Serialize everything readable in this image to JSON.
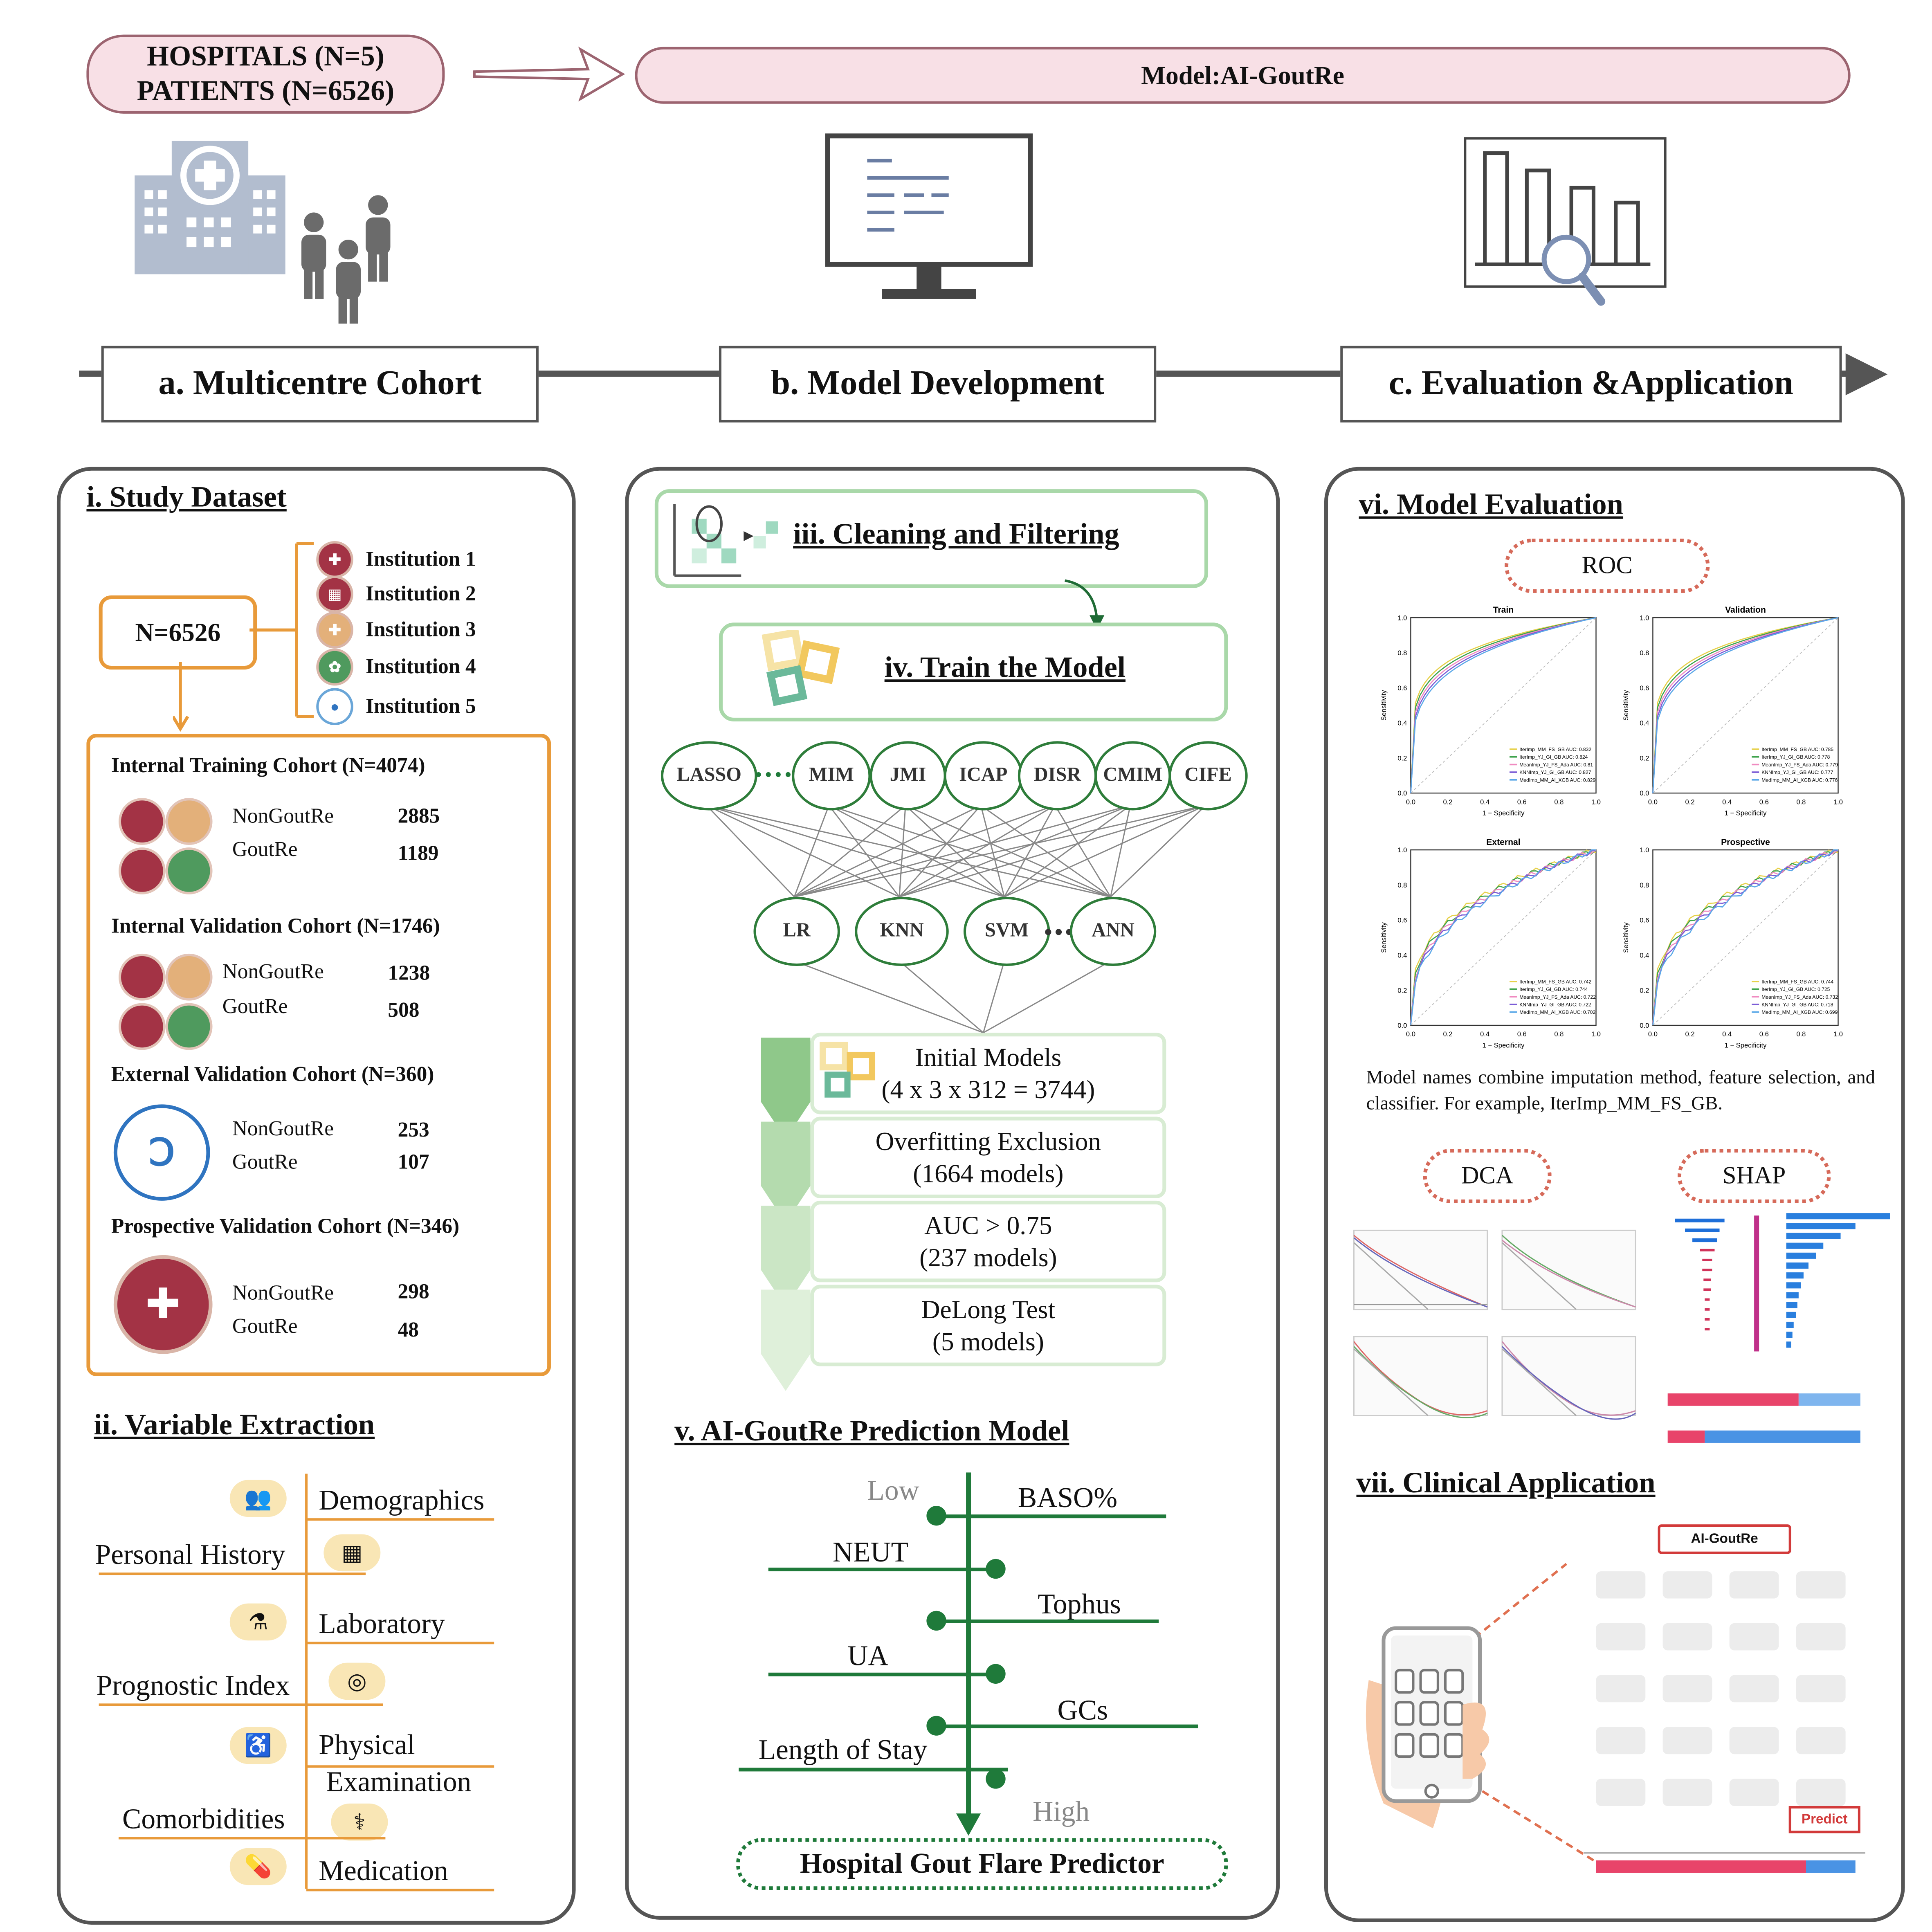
{
  "header": {
    "left_pill_line1": "HOSPITALS (N=5)",
    "left_pill_line2": "PATIENTS (N=6526)",
    "model_pill": "Model:AI-GoutRe"
  },
  "stages": {
    "a": "a. Multicentre Cohort",
    "b": "b. Model Development",
    "c": "c. Evaluation &Application"
  },
  "panel_a": {
    "title_i": "i.   Study Dataset",
    "total": "N=6526",
    "institutions": [
      "Institution 1",
      "Institution 2",
      "Institution 3",
      "Institution 4",
      "Institution 5"
    ],
    "cohorts": [
      {
        "title": "Internal Training Cohort  (N=4074)",
        "neg_label": "NonGoutRe",
        "neg": "2885",
        "pos_label": "GoutRe",
        "pos": "1189"
      },
      {
        "title": "Internal Validation Cohort  (N=1746)",
        "neg_label": "NonGoutRe",
        "neg": "1238",
        "pos_label": "GoutRe",
        "pos": "508"
      },
      {
        "title": "External Validation Cohort  (N=360)",
        "neg_label": "NonGoutRe",
        "neg": "253",
        "pos_label": "GoutRe",
        "pos": "107"
      },
      {
        "title": "Prospective Validation Cohort (N=346)",
        "neg_label": "NonGoutRe",
        "neg": "298",
        "pos_label": "GoutRe",
        "pos": "48"
      }
    ],
    "title_ii": "ii.  Variable Extraction",
    "variables": {
      "demographics": "Demographics",
      "personal_history": "Personal History",
      "laboratory": "Laboratory",
      "prognostic_index": "Prognostic Index",
      "physical_1": "Physical",
      "physical_2": "Examination",
      "comorbidities": "Comorbidities",
      "medication": "Medication"
    }
  },
  "panel_b": {
    "cleaning": "iii. Cleaning and Filtering",
    "train": "iv. Train the Model",
    "feature_selectors": [
      "LASSO",
      "MIM",
      "JMI",
      "ICAP",
      "DISR",
      "CMIM",
      "CIFE"
    ],
    "classifiers": [
      "LR",
      "KNN",
      "SVM",
      "ANN"
    ],
    "steps": [
      {
        "line1": "Initial Models",
        "line2": "(4 x 3 x 312 = 3744)"
      },
      {
        "line1": "Overfitting Exclusion",
        "line2": "(1664 models)"
      },
      {
        "line1": "AUC > 0.75",
        "line2": "(237 models)"
      },
      {
        "line1": "DeLong Test",
        "line2": "(5 models)"
      }
    ],
    "title_v": "v. AI-GoutRe Prediction Model",
    "low": "Low",
    "high": "High",
    "features": [
      "BASO%",
      "NEUT",
      "Tophus",
      "UA",
      "GCs",
      "Length of Stay"
    ],
    "predictor": "Hospital Gout Flare Predictor"
  },
  "panel_c": {
    "title_vi": "vi. Model Evaluation",
    "roc": "ROC",
    "roc_panels": [
      {
        "title": "Train",
        "legend": [
          "IterImp_MM_FS_GB AUC: 0.832",
          "IterImp_YJ_GI_GB AUC: 0.824",
          "MeanImp_YJ_FS_Ada AUC: 0.81",
          "KNNImp_YJ_GI_GB AUC: 0.827",
          "MedImp_MM_AI_XGB AUC: 0.829"
        ]
      },
      {
        "title": "Validation",
        "legend": [
          "IterImp_MM_FS_GB AUC: 0.785",
          "IterImp_YJ_GI_GB AUC: 0.778",
          "MeanImp_YJ_FS_Ada AUC: 0.779",
          "KNNImp_YJ_GI_GB AUC: 0.777",
          "MedImp_MM_AI_XGB AUC: 0.776"
        ]
      },
      {
        "title": "External",
        "legend": [
          "IterImp_MM_FS_GB AUC: 0.742",
          "IterImp_YJ_GI_GB AUC: 0.744",
          "MeanImp_YJ_FS_Ada AUC: 0.722",
          "KNNImp_YJ_GI_GB AUC: 0.722",
          "MedImp_MM_AI_XGB AUC: 0.702"
        ]
      },
      {
        "title": "Prospective",
        "legend": [
          "IterImp_MM_FS_GB AUC: 0.744",
          "IterImp_YJ_GI_GB AUC: 0.725",
          "MeanImp_YJ_FS_Ada AUC: 0.732",
          "KNNImp_YJ_GI_GB AUC: 0.718",
          "MedImp_MM_AI_XGB AUC: 0.699"
        ]
      }
    ],
    "ticks": [
      "0.0",
      "0.2",
      "0.4",
      "0.6",
      "0.8",
      "1.0"
    ],
    "xlabel": "1 − Specificity",
    "ylabel": "Sensitivity",
    "caption": "Model names combine imputation method, feature selection, and classifier. For example, IterImp_MM_FS_GB.",
    "dca": "DCA",
    "shap": "SHAP",
    "title_vii": "vii. Clinical Application",
    "app_title": "AI-GoutRe",
    "predict": "Predict"
  },
  "colors": {
    "pill_fill": "#f8e0e6",
    "pill_border": "#9c6470",
    "orange": "#e89a3a",
    "green": "#1f7a3a",
    "green_light": "#a9d8a9",
    "red_dotted": "#d66a5a",
    "roc_lines": [
      "#e6d14a",
      "#3fa34d",
      "#f08ac0",
      "#7b5cd6",
      "#5ba8e8"
    ]
  },
  "icons": [
    "hospital-icon",
    "people-icon",
    "monitor-icon",
    "bar-chart-magnifier-icon",
    "phone-hand-icon"
  ]
}
